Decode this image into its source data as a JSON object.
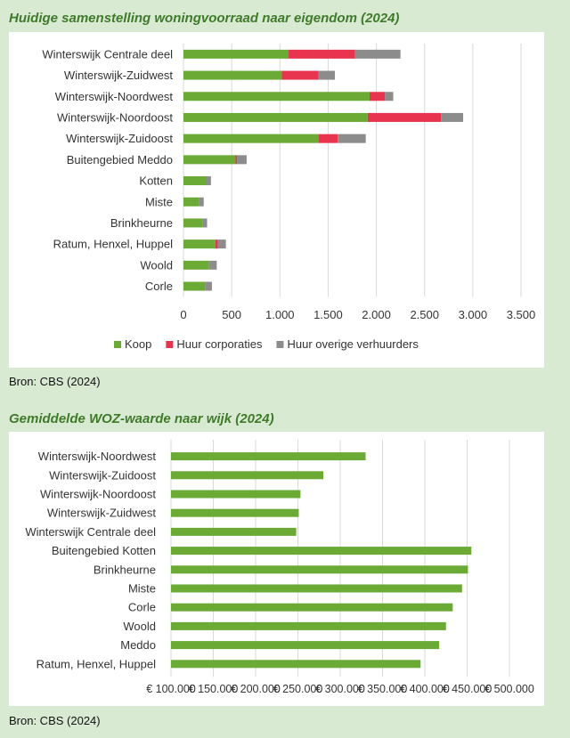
{
  "chart_data": [
    {
      "type": "bar",
      "orientation": "horizontal",
      "stacked": true,
      "title": "Huidige samenstelling woningvoorraad naar eigendom (2024)",
      "source": "Bron: CBS (2024)",
      "categories": [
        "Winterswijk Centrale deel",
        "Winterswijk-Zuidwest",
        "Winterswijk-Noordwest",
        "Winterswijk-Noordoost",
        "Winterswijk-Zuidoost",
        "Buitengebied Meddo",
        "Kotten",
        "Miste",
        "Brinkheurne",
        "Ratum, Henxel, Huppel",
        "Woold",
        "Corle"
      ],
      "series": [
        {
          "name": "Koop",
          "color": "#6aaa35",
          "values": [
            1090,
            1020,
            1930,
            1910,
            1400,
            540,
            240,
            160,
            200,
            330,
            265,
            225
          ]
        },
        {
          "name": "Huur corporaties",
          "color": "#e8344f",
          "values": [
            690,
            380,
            160,
            760,
            200,
            15,
            0,
            0,
            0,
            25,
            0,
            0
          ]
        },
        {
          "name": "Huur overige verhuurders",
          "color": "#8c8c8c",
          "values": [
            470,
            170,
            85,
            230,
            290,
            100,
            45,
            50,
            45,
            85,
            80,
            70
          ]
        }
      ],
      "xticks": [
        "0",
        "500",
        "1.000",
        "1.500",
        "2.000",
        "2.500",
        "3.000",
        "3.500"
      ],
      "xlim": [
        0,
        3500
      ],
      "grid": true,
      "legend": "bottom"
    },
    {
      "type": "bar",
      "orientation": "horizontal",
      "title": "Gemiddelde WOZ-waarde naar wijk (2024)",
      "source": "Bron: CBS (2024)",
      "categories": [
        "Winterswijk-Noordwest",
        "Winterswijk-Zuidoost",
        "Winterswijk-Noordoost",
        "Winterswijk-Zuidwest",
        "Winterswijk Centrale deel",
        "Buitengebied Kotten",
        "Brinkheurne",
        "Miste",
        "Corle",
        "Woold",
        "Meddo",
        "Ratum, Henxel, Huppel"
      ],
      "series": [
        {
          "name": "",
          "color": "#6aaa35",
          "values": [
            330000,
            280000,
            253000,
            251000,
            248000,
            455000,
            451000,
            444000,
            433000,
            425000,
            417000,
            395000
          ]
        }
      ],
      "xticks": [
        "€ 100.000",
        "€ 150.000",
        "€ 200.000",
        "€ 250.000",
        "€ 300.000",
        "€ 350.000",
        "€ 400.000",
        "€ 450.000",
        "€ 500.000"
      ],
      "xlim": [
        100000,
        500000
      ],
      "grid": true
    }
  ]
}
